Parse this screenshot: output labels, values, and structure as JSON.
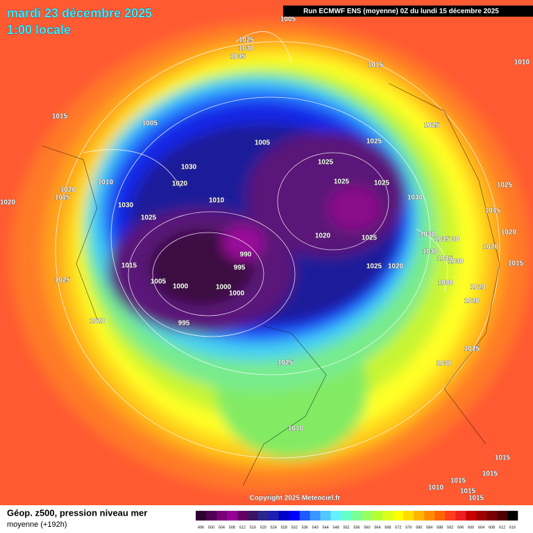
{
  "header": {
    "title": "mardi 23 décembre 2025",
    "subtitle": "1:00 locale",
    "run": "Run ECMWF ENS (moyenne) 0Z du lundi 15 décembre 2025"
  },
  "map": {
    "isobar_labels": [
      "1005",
      "1025",
      "1030",
      "1035",
      "1015",
      "1010",
      "1015",
      "1005",
      "1025",
      "1005",
      "1025",
      "1025",
      "1030",
      "1010",
      "1020",
      "1025",
      "1025",
      "1025",
      "1020",
      "1015",
      "1030",
      "1020",
      "1010",
      "1030",
      "1015",
      "1025",
      "1020",
      "1025",
      "1030",
      "1035",
      "30",
      "1020",
      "1020",
      "1030",
      "990",
      "1035",
      "1030",
      "1015",
      "995",
      "1025",
      "1020",
      "1015",
      "1005",
      "1000",
      "1000",
      "1030",
      "1000",
      "1020",
      "1025",
      "1020",
      "1020",
      "995",
      "1025",
      "1025",
      "1030",
      "1010",
      "1015",
      "1015",
      "1015",
      "1010",
      "1015",
      "1015"
    ],
    "copyright": "Copyright 2025 Meteociel.fr"
  },
  "footer": {
    "title": "Géop. z500, pression niveau mer",
    "subtitle": "moyenne  (+192h)"
  },
  "legend": {
    "levels": [
      496,
      500,
      504,
      508,
      512,
      516,
      520,
      524,
      528,
      532,
      536,
      540,
      544,
      548,
      552,
      556,
      560,
      564,
      568,
      572,
      576,
      580,
      584,
      588,
      592,
      596,
      600,
      604,
      608,
      612,
      616
    ],
    "colors": [
      "#300030",
      "#500050",
      "#780078",
      "#960096",
      "#640064",
      "#3c1464",
      "#28288c",
      "#1e1eb4",
      "#0000c8",
      "#0000ff",
      "#1e5aff",
      "#3c96ff",
      "#50c8ff",
      "#64f0ff",
      "#64ffc8",
      "#78ff96",
      "#96ff64",
      "#b4ff32",
      "#dcff1e",
      "#ffff00",
      "#ffdc00",
      "#ffb400",
      "#ff8c00",
      "#ff6400",
      "#ff3c1e",
      "#f01e1e",
      "#c80000",
      "#a00000",
      "#780000",
      "#500000",
      "#000000"
    ]
  }
}
